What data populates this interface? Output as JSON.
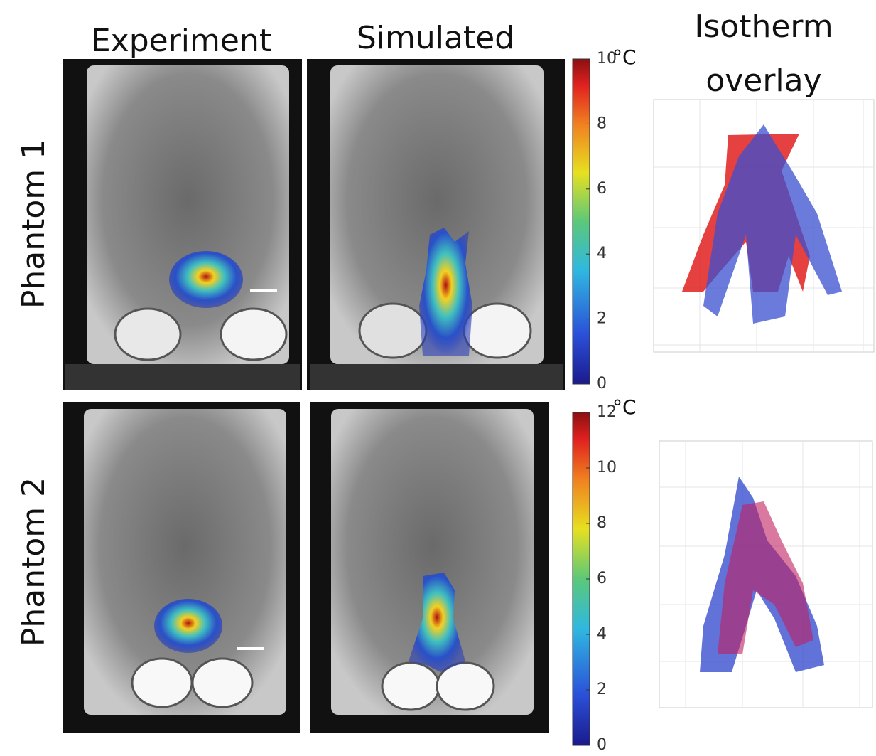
{
  "headers": {
    "experiment": "Experiment",
    "simulated": "Simulated",
    "isotherm": [
      "Isotherm",
      "overlay"
    ]
  },
  "rows": [
    {
      "label": "Phantom 1",
      "colorbar": {
        "unit": "°C",
        "lim": [
          0,
          10
        ],
        "ticks": [
          0,
          2,
          4,
          6,
          8,
          10
        ]
      }
    },
    {
      "label": "Phantom 2",
      "colorbar": {
        "unit": "°C",
        "lim": [
          0,
          12
        ],
        "ticks": [
          0,
          2,
          4,
          6,
          8,
          10,
          12
        ]
      }
    }
  ]
}
